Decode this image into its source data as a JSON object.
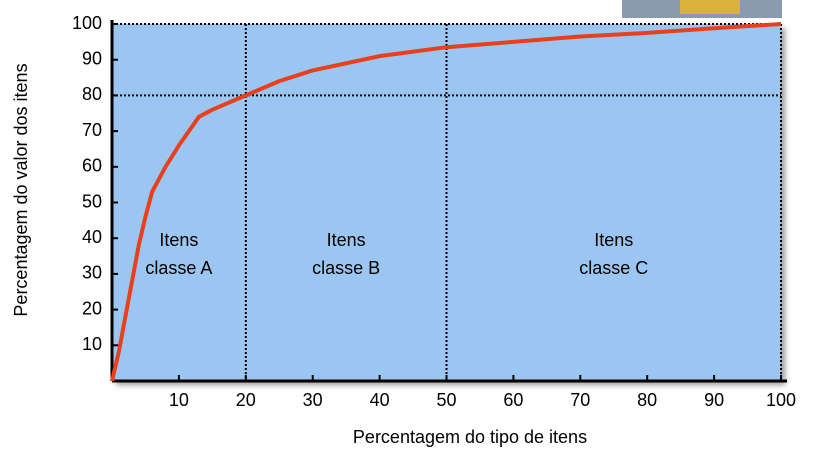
{
  "chart_data": {
    "type": "line",
    "xlabel": "Percentagem do tipo de itens",
    "ylabel": "Percentagem do valor dos itens",
    "x": [
      0,
      1,
      2,
      3,
      4,
      5,
      6,
      8,
      10,
      13,
      15,
      20,
      25,
      30,
      40,
      50,
      60,
      70,
      80,
      90,
      100
    ],
    "values": [
      0,
      8,
      18,
      28,
      38,
      46,
      53,
      60,
      66,
      74,
      76,
      80,
      84,
      87,
      91,
      93.5,
      95,
      96.5,
      97.5,
      98.8,
      100
    ],
    "color": "#e8401c",
    "xlim": [
      0,
      100
    ],
    "ylim": [
      0,
      100
    ],
    "xticks": [
      10,
      20,
      30,
      40,
      50,
      60,
      70,
      80,
      90,
      100
    ],
    "yticks": [
      10,
      20,
      30,
      40,
      50,
      60,
      70,
      80,
      90,
      100
    ],
    "vlines": [
      20,
      50
    ],
    "hlines": [
      80
    ],
    "annotations": [
      {
        "lines": [
          "Itens",
          "classe A"
        ]
      },
      {
        "lines": [
          "Itens",
          "classe B"
        ]
      },
      {
        "lines": [
          "Itens",
          "classe C"
        ]
      }
    ]
  }
}
